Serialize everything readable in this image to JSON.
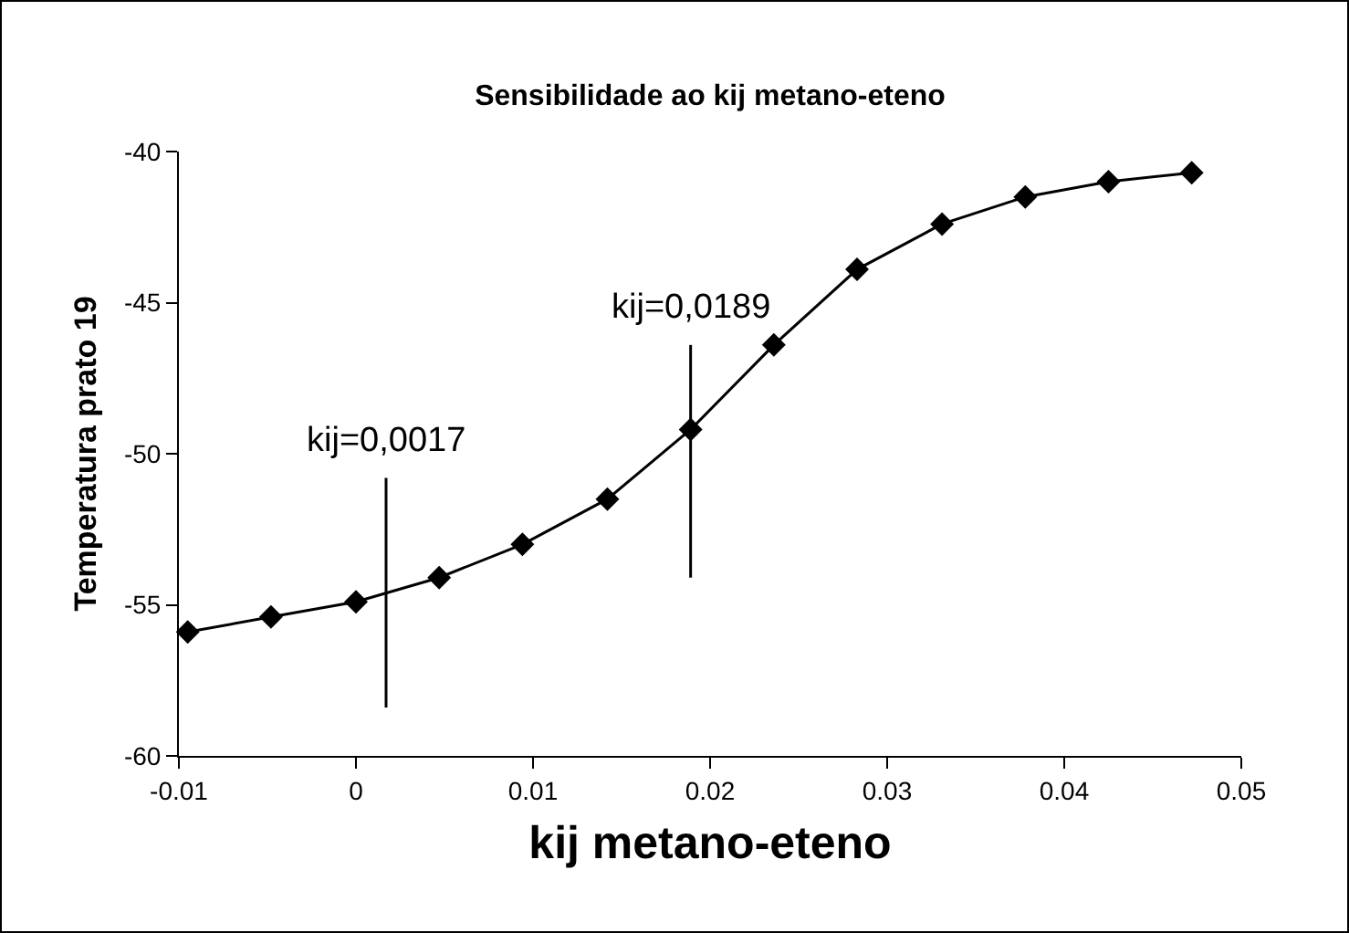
{
  "chart_data": {
    "type": "line",
    "title": "Sensibilidade ao kij metano-eteno",
    "xlabel": "kij metano-eteno",
    "ylabel": "Temperatura prato 19",
    "series": [
      {
        "color": "#000000",
        "marker": "diamond",
        "x": [
          -0.0095,
          -0.0048,
          0,
          0.0047,
          0.0094,
          0.0142,
          0.0189,
          0.0236,
          0.0283,
          0.0331,
          0.0378,
          0.0425,
          0.0472
        ],
        "values": [
          -55.9,
          -55.4,
          -54.9,
          -54.1,
          -53.0,
          -51.5,
          -49.2,
          -46.4,
          -43.9,
          -42.4,
          -41.5,
          -41.0,
          -40.7
        ]
      },
      {
        "color": "#000000",
        "marker": "none",
        "x": [
          0.0017,
          0.0017
        ],
        "values": [
          -50.8,
          -58.4
        ]
      },
      {
        "color": "#000000",
        "marker": "none",
        "x": [
          0.0189,
          0.0189
        ],
        "values": [
          -46.4,
          -54.1
        ]
      }
    ],
    "annotations": [
      {
        "text": "kij=0,0017",
        "x": 0.0017,
        "y": -50.8
      },
      {
        "text": "kij=0,0189",
        "x": 0.0189,
        "y": -46.4
      }
    ],
    "xlim": [
      -0.01,
      0.05
    ],
    "xticks": [
      -0.01,
      0,
      0.01,
      0.02,
      0.03,
      0.04,
      0.05
    ],
    "ylim": [
      -60,
      -40
    ],
    "yticks": [
      -60,
      -55,
      -50,
      -45,
      -40
    ],
    "grid": false
  }
}
